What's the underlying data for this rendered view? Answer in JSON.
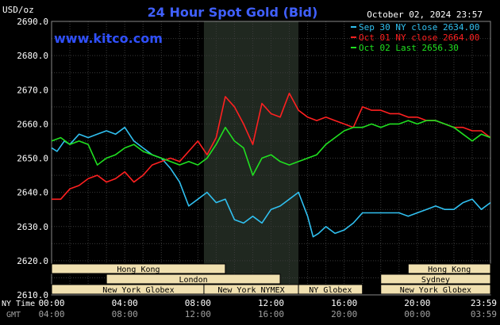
{
  "header": {
    "unit": "USD/oz",
    "title": "24 Hour Spot Gold (Bid)",
    "timestamp": "October 02, 2024 23:57",
    "brand": "www.kitco.com"
  },
  "colors": {
    "background": "#000000",
    "grid": "#3a3a3a",
    "highlight": "#202820",
    "title": "#4060ff",
    "brand": "#3050ff",
    "axis_text": "#ffffff",
    "gmt_text": "#a0a0a0",
    "session_fill": "#f0e0b0",
    "session_text": "#000000"
  },
  "axis_labels": {
    "ny_time": "NY Time",
    "gmt": "GMT"
  },
  "sessions": [
    {
      "name": "Hong Kong",
      "start": 0,
      "end": 9.5,
      "row": 0
    },
    {
      "name": "London",
      "start": 3,
      "end": 12.5,
      "row": 1
    },
    {
      "name": "New York Globex",
      "start": 0,
      "end": 9.5,
      "row": 2
    },
    {
      "name": "New York NYMEX",
      "start": 8.33,
      "end": 13.5,
      "row": 2
    },
    {
      "name": "NY Globex",
      "start": 13.5,
      "end": 17,
      "row": 2
    },
    {
      "name": "Hong Kong",
      "start": 19.5,
      "end": 24,
      "row": 0
    },
    {
      "name": "Sydney",
      "start": 18,
      "end": 24,
      "row": 1
    },
    {
      "name": "New York Globex",
      "start": 18,
      "end": 24,
      "row": 2
    }
  ],
  "chart_data": {
    "type": "line",
    "title": "24 Hour Spot Gold (Bid)",
    "ylabel": "USD/oz",
    "ylim": [
      2610,
      2690
    ],
    "y_ticks": [
      "2690.0",
      "2680.0",
      "2670.0",
      "2660.0",
      "2650.0",
      "2640.0",
      "2630.0",
      "2620.0",
      "2610.0"
    ],
    "xlim": [
      0,
      24
    ],
    "x_ticks_ny": [
      "00:00",
      "04:00",
      "08:00",
      "12:00",
      "16:00",
      "20:00",
      "23:59"
    ],
    "x_ticks_gmt": [
      "04:00",
      "08:00",
      "12:00",
      "16:00",
      "20:00",
      "00:00",
      "03:59"
    ],
    "highlight_range": [
      8.33,
      13.5
    ],
    "grid": true,
    "legend_position": "top-right",
    "series": [
      {
        "name": "Sep 30 NY close 2634.00",
        "color": "#30c0f0",
        "x": [
          0,
          0.3,
          0.7,
          1,
          1.5,
          2,
          2.5,
          3,
          3.5,
          4,
          4.5,
          5,
          5.5,
          6,
          6.5,
          7,
          7.5,
          8,
          8.5,
          9,
          9.5,
          10,
          10.5,
          11,
          11.5,
          12,
          12.5,
          13,
          13.5,
          14,
          14.3,
          14.6,
          15,
          15.5,
          16,
          16.5,
          17,
          17.5,
          18,
          18.5,
          19,
          19.5,
          20,
          20.5,
          21,
          21.5,
          22,
          22.5,
          23,
          23.5,
          24
        ],
        "y": [
          2653,
          2652,
          2655,
          2654,
          2657,
          2656,
          2657,
          2658,
          2657,
          2659,
          2655,
          2653,
          2651,
          2650,
          2647,
          2643,
          2636,
          2638,
          2640,
          2637,
          2638,
          2632,
          2631,
          2633,
          2631,
          2635,
          2636,
          2638,
          2640,
          2633,
          2627,
          2628,
          2630,
          2628,
          2629,
          2631,
          2634,
          2634,
          2634,
          2634,
          2634,
          2633,
          2634,
          2635,
          2636,
          2635,
          2635,
          2637,
          2638,
          2635,
          2637
        ]
      },
      {
        "name": "Oct 01 NY close 2664.00",
        "color": "#ff2020",
        "x": [
          0,
          0.5,
          1,
          1.5,
          2,
          2.5,
          3,
          3.5,
          4,
          4.5,
          5,
          5.5,
          6,
          6.5,
          7,
          7.5,
          8,
          8.5,
          9,
          9.5,
          10,
          10.5,
          11,
          11.5,
          12,
          12.5,
          13,
          13.5,
          14,
          14.5,
          15,
          15.5,
          16,
          16.5,
          17,
          17.5,
          18,
          18.5,
          19,
          19.5,
          20,
          20.5,
          21,
          21.5,
          22,
          22.5,
          23,
          23.5,
          24
        ],
        "y": [
          2638,
          2638,
          2641,
          2642,
          2644,
          2645,
          2643,
          2644,
          2646,
          2643,
          2645,
          2648,
          2649,
          2650,
          2649,
          2652,
          2655,
          2651,
          2656,
          2668,
          2665,
          2660,
          2654,
          2666,
          2663,
          2662,
          2669,
          2664,
          2662,
          2661,
          2662,
          2661,
          2660,
          2659,
          2665,
          2664,
          2664,
          2663,
          2663,
          2662,
          2662,
          2661,
          2661,
          2660,
          2659,
          2659,
          2658,
          2658,
          2656
        ]
      },
      {
        "name": "Oct 02 Last 2656.30",
        "color": "#20e020",
        "x": [
          0,
          0.5,
          1,
          1.5,
          2,
          2.5,
          3,
          3.5,
          4,
          4.5,
          5,
          5.5,
          6,
          6.5,
          7,
          7.5,
          8,
          8.5,
          9,
          9.5,
          10,
          10.5,
          11,
          11.5,
          12,
          12.5,
          13,
          13.5,
          14,
          14.5,
          15,
          15.5,
          16,
          16.5,
          17,
          17.5,
          18,
          18.5,
          19,
          19.5,
          20,
          20.5,
          21,
          21.5,
          22,
          22.5,
          23,
          23.5,
          24
        ],
        "y": [
          2655,
          2656,
          2654,
          2655,
          2654,
          2648,
          2650,
          2651,
          2653,
          2654,
          2652,
          2651,
          2650,
          2649,
          2648,
          2649,
          2648,
          2650,
          2654,
          2659,
          2655,
          2653,
          2645,
          2650,
          2651,
          2649,
          2648,
          2649,
          2650,
          2651,
          2654,
          2656,
          2658,
          2659,
          2659,
          2660,
          2659,
          2660,
          2660,
          2661,
          2660,
          2661,
          2661,
          2660,
          2659,
          2657,
          2655,
          2657,
          2656
        ]
      }
    ]
  }
}
